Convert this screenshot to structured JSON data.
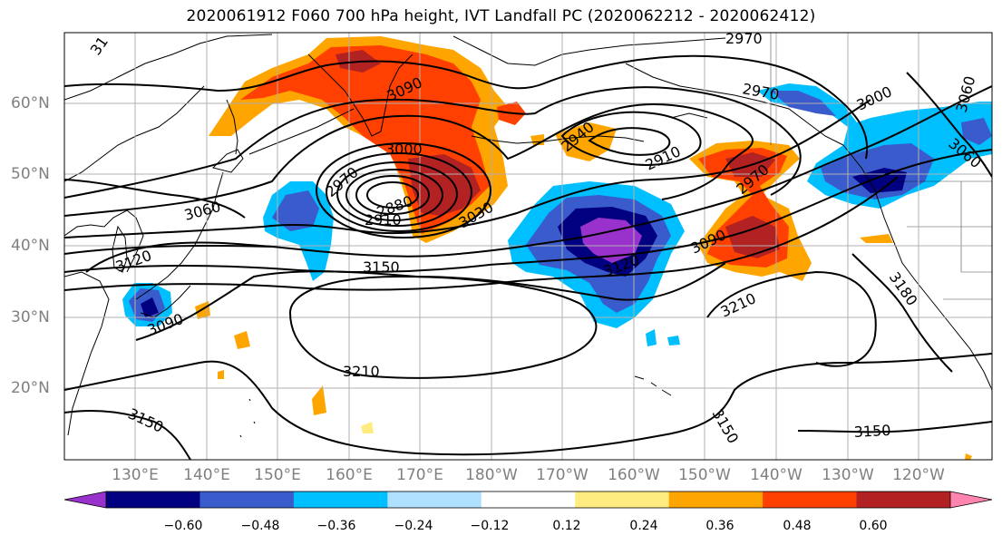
{
  "title": "2020061912 F060 700 hPa height, IVT Landfall PC (2020062212 - 2020062412)",
  "lat_labels": [
    "60°N",
    "50°N",
    "40°N",
    "30°N",
    "20°N"
  ],
  "lon_labels": [
    "130°E",
    "140°E",
    "150°E",
    "160°E",
    "170°E",
    "180°W",
    "170°W",
    "160°W",
    "150°W",
    "140°W",
    "130°W",
    "120°W"
  ],
  "colorbar": {
    "ticks": [
      "−0.60",
      "−0.48",
      "−0.36",
      "−0.24",
      "−0.12",
      "0.12",
      "0.24",
      "0.36",
      "0.48",
      "0.60"
    ],
    "colors": [
      "#9932CC",
      "#000080",
      "#3A5BCC",
      "#00BFFF",
      "#B0E0FF",
      "#FFFFFF",
      "#FFEC80",
      "#FFA500",
      "#FF4000",
      "#B22222",
      "#FF85B0"
    ]
  },
  "contour_labels": [
    "2970",
    "3090",
    "3000",
    "2970",
    "3030",
    "3060",
    "3120",
    "3090",
    "3150",
    "3210",
    "3150",
    "2940",
    "2910",
    "2970",
    "2970",
    "3090",
    "3120",
    "3210",
    "3000",
    "3060",
    "3060",
    "3180",
    "3150",
    "3150",
    "2880",
    "2910",
    "31"
  ]
}
